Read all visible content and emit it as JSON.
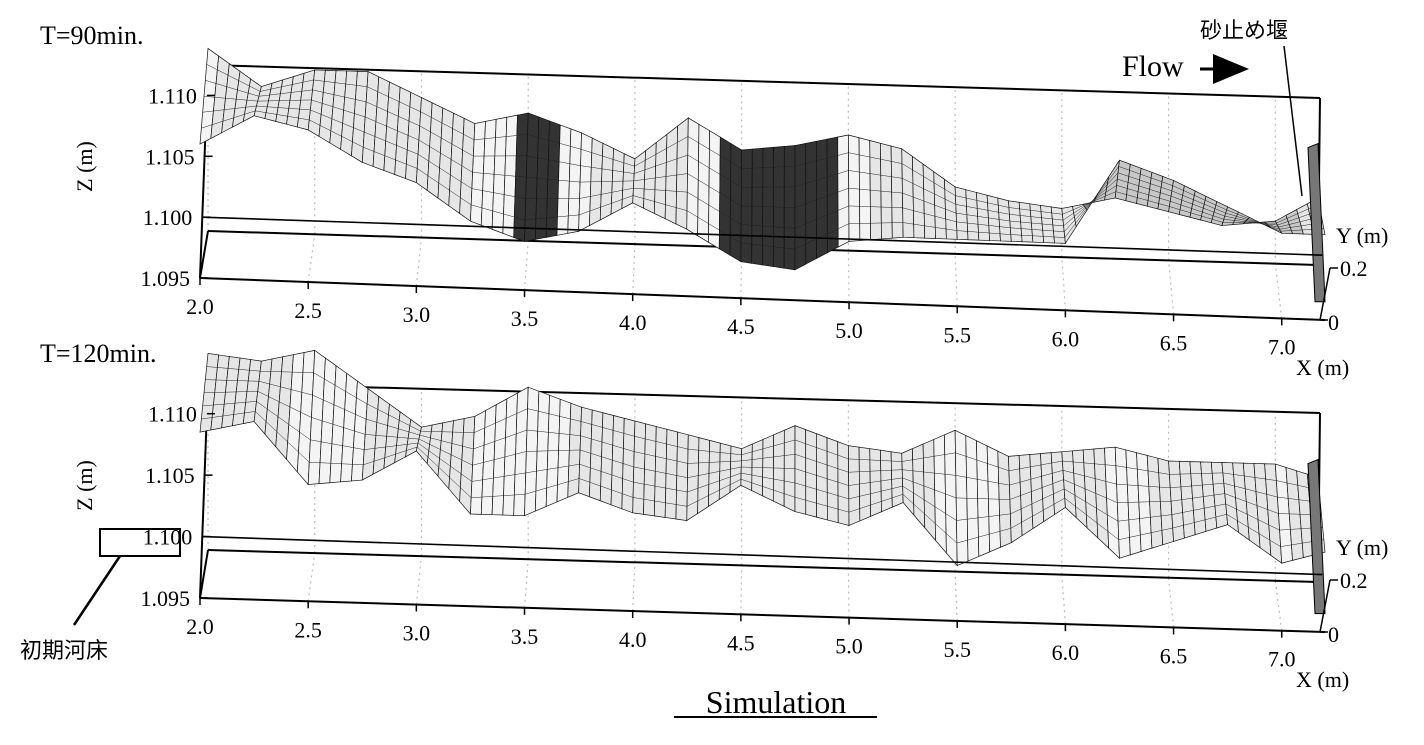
{
  "figure": {
    "caption": "Simulation",
    "flow_label": "Flow",
    "sand_weir_label": "砂止め堰",
    "initial_bed_label": "初期河床"
  },
  "chart_data": [
    {
      "type": "surface",
      "title": "T=90min.",
      "xlabel": "X (m)",
      "ylabel": "Y (m)",
      "zlabel": "Z (m)",
      "x_ticks": [
        "2.0",
        "2.5",
        "3.0",
        "3.5",
        "4.0",
        "4.5",
        "5.0",
        "5.5",
        "6.0",
        "6.5",
        "7.0"
      ],
      "y_ticks": [
        "0.2",
        "0"
      ],
      "z_ticks": [
        "1.110",
        "1.105",
        "1.100",
        "1.095"
      ],
      "xlim": [
        2.0,
        7.2
      ],
      "ylim": [
        0,
        0.2
      ],
      "zlim": [
        1.095,
        1.112
      ],
      "grid": true,
      "bed_profile_left": {
        "x": [
          2.0,
          2.25,
          2.5,
          2.75,
          3.0,
          3.25,
          3.5,
          3.75,
          4.0,
          4.25,
          4.5,
          4.75,
          5.0,
          5.25,
          5.5,
          5.75,
          6.0,
          6.25,
          6.5,
          6.75,
          7.0,
          7.2
        ],
        "z": [
          1.106,
          1.1085,
          1.1075,
          1.105,
          1.1035,
          1.1005,
          1.099,
          1.1,
          1.1025,
          1.1005,
          1.098,
          1.0975,
          1.1,
          1.1005,
          1.1005,
          1.1005,
          1.1005,
          1.1075,
          1.106,
          1.104,
          1.102,
          1.102
        ]
      },
      "bed_profile_right": {
        "x": [
          2.0,
          2.25,
          2.5,
          2.75,
          3.0,
          3.25,
          3.5,
          3.75,
          4.0,
          4.25,
          4.5,
          4.75,
          5.0,
          5.25,
          5.5,
          5.75,
          6.0,
          6.25,
          6.5,
          6.75,
          7.0,
          7.2
        ],
        "z": [
          1.11,
          1.107,
          1.1085,
          1.1085,
          1.1065,
          1.1045,
          1.1055,
          1.104,
          1.102,
          1.1055,
          1.103,
          1.1035,
          1.1045,
          1.1035,
          1.1005,
          1.0995,
          1.099,
          1.1,
          1.099,
          1.098,
          1.0985,
          1.1005
        ]
      }
    },
    {
      "type": "surface",
      "title": "T=120min.",
      "xlabel": "X (m)",
      "ylabel": "Y (m)",
      "zlabel": "Z (m)",
      "x_ticks": [
        "2.0",
        "2.5",
        "3.0",
        "3.5",
        "4.0",
        "4.5",
        "5.0",
        "5.5",
        "6.0",
        "6.5",
        "7.0"
      ],
      "y_ticks": [
        "0.2",
        "0"
      ],
      "z_ticks": [
        "1.110",
        "1.105",
        "1.100",
        "1.095"
      ],
      "xlim": [
        2.0,
        7.2
      ],
      "ylim": [
        0,
        0.2
      ],
      "zlim": [
        1.095,
        1.112
      ],
      "grid": true,
      "highlighted_tick": "1.100",
      "bed_profile_left": {
        "x": [
          2.0,
          2.25,
          2.5,
          2.75,
          3.0,
          3.25,
          3.5,
          3.75,
          4.0,
          4.25,
          4.5,
          4.75,
          5.0,
          5.25,
          5.5,
          5.75,
          6.0,
          6.25,
          6.5,
          6.75,
          7.0,
          7.2
        ],
        "z": [
          1.1085,
          1.1095,
          1.1045,
          1.105,
          1.1075,
          1.1025,
          1.1025,
          1.1045,
          1.103,
          1.1025,
          1.1055,
          1.1035,
          1.1025,
          1.1045,
          1.0995,
          1.1015,
          1.1045,
          1.1005,
          1.102,
          1.1035,
          1.1005,
          1.1015
        ]
      },
      "bed_profile_right": {
        "x": [
          2.0,
          2.25,
          2.5,
          2.75,
          3.0,
          3.25,
          3.5,
          3.75,
          4.0,
          4.25,
          4.5,
          4.75,
          5.0,
          5.25,
          5.5,
          5.75,
          6.0,
          6.25,
          6.5,
          6.75,
          7.0,
          7.2
        ],
        "z": [
          1.111,
          1.1105,
          1.1115,
          1.1085,
          1.1055,
          1.1065,
          1.109,
          1.1075,
          1.1065,
          1.1055,
          1.1045,
          1.1065,
          1.105,
          1.1045,
          1.1065,
          1.1045,
          1.105,
          1.1055,
          1.1045,
          1.1045,
          1.1045,
          1.1035
        ]
      }
    }
  ]
}
